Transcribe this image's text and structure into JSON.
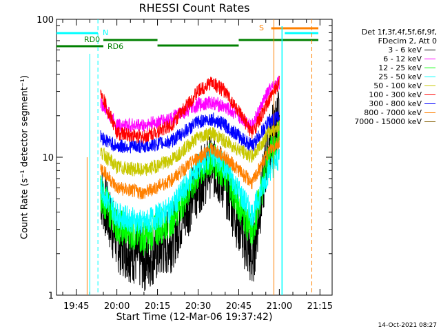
{
  "chart_data": {
    "type": "line",
    "title": "RHESSI Count Rates",
    "xlabel": "Start Time (12-Mar-06 19:37:42)",
    "ylabel": "Count Rate (s⁻¹ detector segment⁻¹)",
    "yscale": "log",
    "ylim": [
      1,
      100
    ],
    "ytick_labels": [
      "1",
      "10",
      "100"
    ],
    "xtick_labels": [
      "19:45",
      "20:00",
      "20:15",
      "20:30",
      "20:45",
      "21:00",
      "21:15"
    ],
    "legend_header": [
      "Det 1f,3f,4f,5f,6f,9f,",
      "FDecim 2, Att 0"
    ],
    "legend_position": "right",
    "series": [
      {
        "name": "3 - 6 keV",
        "color": "#000000",
        "x": [
          "19:54",
          "20:00",
          "20:10",
          "20:20",
          "20:30",
          "20:35",
          "20:40",
          "20:50",
          "20:56",
          "21:00"
        ],
        "y": [
          5.5,
          2.5,
          1.8,
          2.5,
          6.5,
          9.0,
          6.5,
          1.8,
          12,
          20
        ]
      },
      {
        "name": "6 - 12 keV",
        "color": "#ff00ff",
        "x": [
          "19:54",
          "20:00",
          "20:10",
          "20:20",
          "20:30",
          "20:35",
          "20:40",
          "20:50",
          "20:56",
          "21:00"
        ],
        "y": [
          25,
          17,
          17,
          19,
          24,
          25,
          23,
          17,
          30,
          35
        ]
      },
      {
        "name": "12 - 25 keV",
        "color": "#00ff00",
        "x": [
          "19:54",
          "20:00",
          "20:10",
          "20:20",
          "20:30",
          "20:35",
          "20:40",
          "20:50",
          "20:56",
          "21:00"
        ],
        "y": [
          5.5,
          3.2,
          2.6,
          3.5,
          7.5,
          10,
          7.5,
          2.8,
          10,
          14
        ]
      },
      {
        "name": "25 - 50 keV",
        "color": "#00ffff",
        "x": [
          "19:54",
          "20:00",
          "20:10",
          "20:20",
          "20:30",
          "20:35",
          "20:40",
          "20:50",
          "20:56",
          "21:00"
        ],
        "y": [
          6.0,
          3.8,
          3.3,
          4.2,
          8.5,
          10.5,
          8.5,
          3.8,
          8.0,
          10
        ]
      },
      {
        "name": "50 - 100 keV",
        "color": "#c8c800",
        "x": [
          "19:54",
          "20:00",
          "20:10",
          "20:20",
          "20:30",
          "20:35",
          "20:40",
          "20:50",
          "20:56",
          "21:00"
        ],
        "y": [
          11,
          8.5,
          8.0,
          9.5,
          14,
          15,
          13,
          10,
          15,
          17
        ]
      },
      {
        "name": "100 - 300 keV",
        "color": "#ff0000",
        "x": [
          "19:54",
          "20:00",
          "20:10",
          "20:20",
          "20:30",
          "20:35",
          "20:40",
          "20:50",
          "20:56",
          "21:00"
        ],
        "y": [
          30,
          15,
          14,
          17,
          30,
          35,
          30,
          15,
          25,
          36
        ]
      },
      {
        "name": "300 - 800 keV",
        "color": "#0000ff",
        "x": [
          "19:54",
          "20:00",
          "20:10",
          "20:20",
          "20:30",
          "20:35",
          "20:40",
          "20:50",
          "20:56",
          "21:00"
        ],
        "y": [
          14,
          12,
          12,
          13,
          18,
          19,
          17,
          12,
          18,
          20
        ]
      },
      {
        "name": "800 - 7000 keV",
        "color": "#ff8000",
        "x": [
          "19:54",
          "20:00",
          "20:10",
          "20:20",
          "20:30",
          "20:35",
          "20:40",
          "20:50",
          "20:56",
          "21:00"
        ],
        "y": [
          8.5,
          6.0,
          5.5,
          6.8,
          10,
          11.5,
          10,
          6.5,
          11,
          13
        ]
      },
      {
        "name": "7000 - 15000 keV",
        "color": "#8b6914",
        "x": [],
        "y": []
      }
    ],
    "annotations": {
      "attenuator_label": "RD0",
      "decimation_label": "RD6",
      "night_label": "N",
      "saa_label": "S"
    }
  }
}
